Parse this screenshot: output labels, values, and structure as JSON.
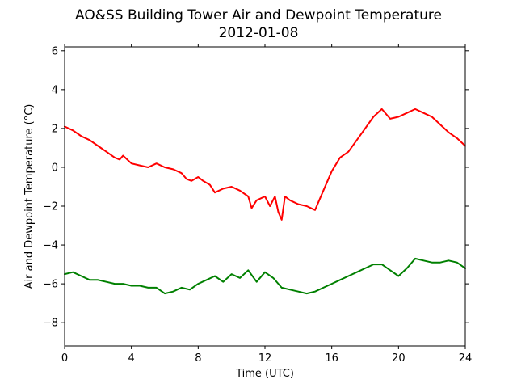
{
  "chart_data": {
    "type": "line",
    "title": "AO&SS Building Tower Air and Dewpoint Temperature",
    "subtitle": "2012-01-08",
    "xlabel": "Time (UTC)",
    "ylabel": "Air and Dewpoint Temperature (°C)",
    "xlim": [
      0,
      24
    ],
    "ylim": [
      -9.2,
      6.2
    ],
    "xticks": [
      0,
      4,
      8,
      12,
      16,
      20,
      24
    ],
    "yticks": [
      -8,
      -6,
      -4,
      -2,
      0,
      2,
      4,
      6
    ],
    "xtick_labels": [
      "0",
      "4",
      "8",
      "12",
      "16",
      "20",
      "24"
    ],
    "ytick_labels": [
      "−8",
      "−6",
      "−4",
      "−2",
      "0",
      "2",
      "4",
      "6"
    ],
    "grid": false,
    "legend": false,
    "series": [
      {
        "color": "#ff0000",
        "x": [
          0,
          0.5,
          1,
          1.5,
          2,
          2.5,
          3,
          3.3,
          3.5,
          4,
          4.5,
          5,
          5.5,
          6,
          6.5,
          7,
          7.3,
          7.6,
          8,
          8.3,
          8.7,
          9,
          9.5,
          10,
          10.5,
          11,
          11.2,
          11.5,
          12,
          12.3,
          12.6,
          12.8,
          13,
          13.2,
          13.5,
          14,
          14.5,
          15,
          15.5,
          16,
          16.5,
          17,
          17.5,
          18,
          18.5,
          19,
          19.5,
          20,
          20.5,
          21,
          21.5,
          22,
          22.5,
          23,
          23.5,
          24
        ],
        "y": [
          2.1,
          1.9,
          1.6,
          1.4,
          1.1,
          0.8,
          0.5,
          0.4,
          0.6,
          0.2,
          0.1,
          0.0,
          0.2,
          0.0,
          -0.1,
          -0.3,
          -0.6,
          -0.7,
          -0.5,
          -0.7,
          -0.9,
          -1.3,
          -1.1,
          -1.0,
          -1.2,
          -1.5,
          -2.1,
          -1.7,
          -1.5,
          -2.0,
          -1.5,
          -2.3,
          -2.7,
          -1.5,
          -1.7,
          -1.9,
          -2.0,
          -2.2,
          -1.2,
          -0.2,
          0.5,
          0.8,
          1.4,
          2.0,
          2.6,
          3.0,
          2.5,
          2.6,
          2.8,
          3.0,
          2.8,
          2.6,
          2.2,
          1.8,
          1.5,
          1.1
        ]
      },
      {
        "color": "#008000",
        "x": [
          0,
          0.5,
          1,
          1.5,
          2,
          2.5,
          3,
          3.5,
          4,
          4.5,
          5,
          5.5,
          6,
          6.5,
          7,
          7.5,
          8,
          8.5,
          9,
          9.5,
          10,
          10.5,
          11,
          11.5,
          12,
          12.5,
          13,
          13.5,
          14,
          14.5,
          15,
          15.5,
          16,
          16.5,
          17,
          17.5,
          18,
          18.5,
          19,
          19.5,
          20,
          20.5,
          21,
          21.5,
          22,
          22.5,
          23,
          23.5,
          24
        ],
        "y": [
          -5.5,
          -5.4,
          -5.6,
          -5.8,
          -5.8,
          -5.9,
          -6.0,
          -6.0,
          -6.1,
          -6.1,
          -6.2,
          -6.2,
          -6.5,
          -6.4,
          -6.2,
          -6.3,
          -6.0,
          -5.8,
          -5.6,
          -5.9,
          -5.5,
          -5.7,
          -5.3,
          -5.9,
          -5.4,
          -5.7,
          -6.2,
          -6.3,
          -6.4,
          -6.5,
          -6.4,
          -6.2,
          -6.0,
          -5.8,
          -5.6,
          -5.4,
          -5.2,
          -5.0,
          -5.0,
          -5.3,
          -5.6,
          -5.2,
          -4.7,
          -4.8,
          -4.9,
          -4.9,
          -4.8,
          -4.9,
          -5.2
        ]
      }
    ]
  }
}
